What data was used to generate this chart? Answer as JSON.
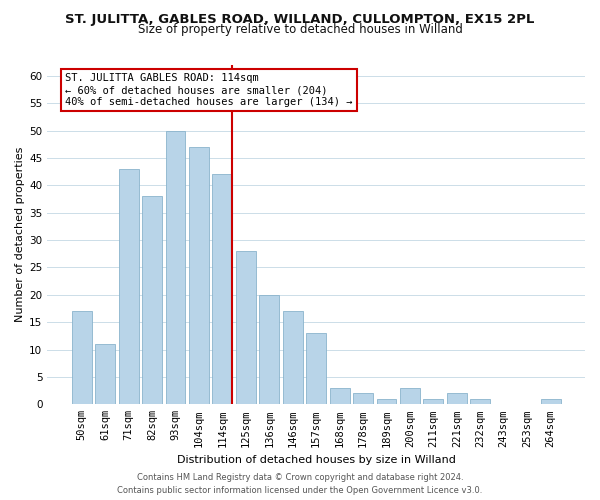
{
  "title": "ST. JULITTA, GABLES ROAD, WILLAND, CULLOMPTON, EX15 2PL",
  "subtitle": "Size of property relative to detached houses in Willand",
  "xlabel": "Distribution of detached houses by size in Willand",
  "ylabel": "Number of detached properties",
  "bar_labels": [
    "50sqm",
    "61sqm",
    "71sqm",
    "82sqm",
    "93sqm",
    "104sqm",
    "114sqm",
    "125sqm",
    "136sqm",
    "146sqm",
    "157sqm",
    "168sqm",
    "178sqm",
    "189sqm",
    "200sqm",
    "211sqm",
    "221sqm",
    "232sqm",
    "243sqm",
    "253sqm",
    "264sqm"
  ],
  "bar_values": [
    17,
    11,
    43,
    38,
    50,
    47,
    42,
    28,
    20,
    17,
    13,
    3,
    2,
    1,
    3,
    1,
    2,
    1,
    0,
    0,
    1
  ],
  "bar_color": "#b8d4e8",
  "bar_edge_color": "#8ab4cc",
  "highlight_index": 6,
  "highlight_line_color": "#cc0000",
  "annotation_title": "ST. JULITTA GABLES ROAD: 114sqm",
  "annotation_line1": "← 60% of detached houses are smaller (204)",
  "annotation_line2": "40% of semi-detached houses are larger (134) →",
  "annotation_box_color": "#ffffff",
  "annotation_box_edge": "#cc0000",
  "ylim": [
    0,
    62
  ],
  "yticks": [
    0,
    5,
    10,
    15,
    20,
    25,
    30,
    35,
    40,
    45,
    50,
    55,
    60
  ],
  "footer1": "Contains HM Land Registry data © Crown copyright and database right 2024.",
  "footer2": "Contains public sector information licensed under the Open Government Licence v3.0.",
  "bg_color": "#ffffff",
  "grid_color": "#ccdde8"
}
